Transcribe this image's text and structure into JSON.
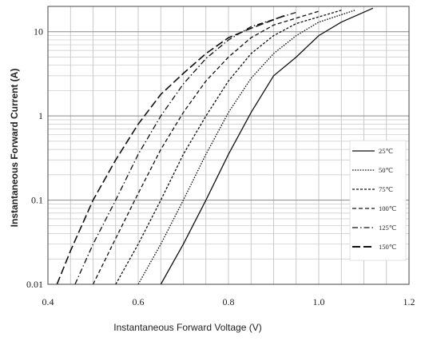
{
  "chart_data": {
    "type": "line",
    "title": "",
    "xlabel": "Instantaneous Forward Voltage (V)",
    "ylabel": "Instantaneous Forward Current (A)",
    "xscale": "linear",
    "yscale": "log",
    "xlim": [
      0.4,
      1.2
    ],
    "ylim": [
      0.01,
      20
    ],
    "x_ticks": [
      "0.4",
      "0.6",
      "0.8",
      "1.0",
      "1.2"
    ],
    "y_ticks": [
      "0.01",
      "0.1",
      "1",
      "10"
    ],
    "grid": true,
    "legend_position": "bottom-right",
    "series": [
      {
        "name": "25℃",
        "dash": "solid",
        "points": [
          [
            0.65,
            0.01
          ],
          [
            0.7,
            0.03
          ],
          [
            0.75,
            0.1
          ],
          [
            0.8,
            0.35
          ],
          [
            0.85,
            1.1
          ],
          [
            0.9,
            3
          ],
          [
            0.95,
            5
          ],
          [
            1.0,
            9
          ],
          [
            1.05,
            13
          ],
          [
            1.12,
            19
          ]
        ]
      },
      {
        "name": "50℃",
        "dash": "dotted",
        "points": [
          [
            0.6,
            0.01
          ],
          [
            0.65,
            0.03
          ],
          [
            0.7,
            0.1
          ],
          [
            0.75,
            0.35
          ],
          [
            0.8,
            1.1
          ],
          [
            0.85,
            2.8
          ],
          [
            0.9,
            5.5
          ],
          [
            0.95,
            9
          ],
          [
            1.0,
            13
          ],
          [
            1.08,
            18
          ]
        ]
      },
      {
        "name": "75℃",
        "dash": "short-dash",
        "points": [
          [
            0.55,
            0.01
          ],
          [
            0.6,
            0.03
          ],
          [
            0.65,
            0.1
          ],
          [
            0.7,
            0.35
          ],
          [
            0.75,
            1
          ],
          [
            0.8,
            2.6
          ],
          [
            0.85,
            5.5
          ],
          [
            0.9,
            9
          ],
          [
            0.95,
            12.5
          ],
          [
            1.05,
            18
          ]
        ]
      },
      {
        "name": "100℃",
        "dash": "dash",
        "points": [
          [
            0.5,
            0.01
          ],
          [
            0.55,
            0.035
          ],
          [
            0.6,
            0.12
          ],
          [
            0.65,
            0.4
          ],
          [
            0.7,
            1.1
          ],
          [
            0.75,
            2.6
          ],
          [
            0.8,
            5
          ],
          [
            0.85,
            8.5
          ],
          [
            0.9,
            12
          ],
          [
            1.0,
            17.5
          ]
        ]
      },
      {
        "name": "125℃",
        "dash": "dash-dot",
        "points": [
          [
            0.46,
            0.01
          ],
          [
            0.5,
            0.03
          ],
          [
            0.55,
            0.1
          ],
          [
            0.6,
            0.35
          ],
          [
            0.65,
            1
          ],
          [
            0.7,
            2.4
          ],
          [
            0.75,
            4.8
          ],
          [
            0.8,
            8
          ],
          [
            0.85,
            11.5
          ],
          [
            0.95,
            17
          ]
        ]
      },
      {
        "name": "150℃",
        "dash": "long-dash",
        "points": [
          [
            0.42,
            0.01
          ],
          [
            0.45,
            0.025
          ],
          [
            0.5,
            0.1
          ],
          [
            0.55,
            0.3
          ],
          [
            0.6,
            0.8
          ],
          [
            0.65,
            1.8
          ],
          [
            0.7,
            3.2
          ],
          [
            0.75,
            5.5
          ],
          [
            0.8,
            8.5
          ],
          [
            0.85,
            11
          ],
          [
            0.93,
            16
          ]
        ]
      }
    ]
  }
}
